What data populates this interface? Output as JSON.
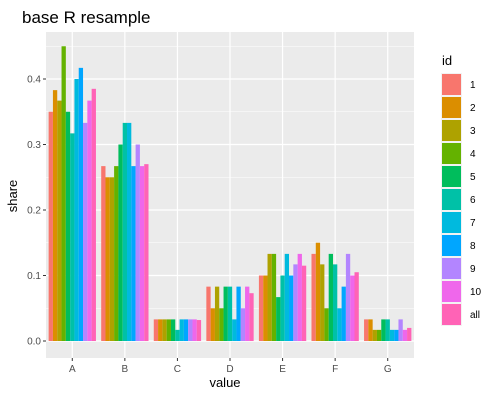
{
  "chart_data": {
    "type": "bar",
    "title": "base R resample",
    "xlabel": "value",
    "ylabel": "share",
    "ylim": [
      0,
      0.47
    ],
    "yticks": [
      0.0,
      0.1,
      0.2,
      0.3,
      0.4
    ],
    "ytick_labels": [
      "0.0",
      "0.1",
      "0.2",
      "0.3",
      "0.4"
    ],
    "grid": true,
    "legend_position": "right",
    "legend_title": "id",
    "categories": [
      "A",
      "B",
      "C",
      "D",
      "E",
      "F",
      "G"
    ],
    "series": [
      {
        "name": "1",
        "color": "#F8766D",
        "values": [
          0.35,
          0.267,
          0.033,
          0.083,
          0.1,
          0.133,
          0.033
        ]
      },
      {
        "name": "2",
        "color": "#DB8E00",
        "values": [
          0.383,
          0.25,
          0.033,
          0.05,
          0.1,
          0.15,
          0.033
        ]
      },
      {
        "name": "3",
        "color": "#AEA200",
        "values": [
          0.367,
          0.25,
          0.033,
          0.083,
          0.133,
          0.117,
          0.017
        ]
      },
      {
        "name": "4",
        "color": "#64B200",
        "values": [
          0.45,
          0.267,
          0.033,
          0.05,
          0.133,
          0.05,
          0.017
        ]
      },
      {
        "name": "5",
        "color": "#00BD5C",
        "values": [
          0.35,
          0.3,
          0.033,
          0.083,
          0.067,
          0.133,
          0.033
        ]
      },
      {
        "name": "6",
        "color": "#00C1A7",
        "values": [
          0.317,
          0.333,
          0.017,
          0.083,
          0.1,
          0.117,
          0.033
        ]
      },
      {
        "name": "7",
        "color": "#00BADE",
        "values": [
          0.4,
          0.333,
          0.033,
          0.033,
          0.133,
          0.05,
          0.017
        ]
      },
      {
        "name": "8",
        "color": "#00A6FF",
        "values": [
          0.417,
          0.267,
          0.033,
          0.083,
          0.1,
          0.083,
          0.017
        ]
      },
      {
        "name": "9",
        "color": "#B385FF",
        "values": [
          0.333,
          0.3,
          0.033,
          0.05,
          0.117,
          0.133,
          0.033
        ]
      },
      {
        "name": "10",
        "color": "#EF67EB",
        "values": [
          0.367,
          0.267,
          0.033,
          0.083,
          0.133,
          0.1,
          0.017
        ]
      },
      {
        "name": "all",
        "color": "#FF63B6",
        "values": [
          0.385,
          0.27,
          0.032,
          0.073,
          0.115,
          0.105,
          0.02
        ]
      }
    ]
  }
}
